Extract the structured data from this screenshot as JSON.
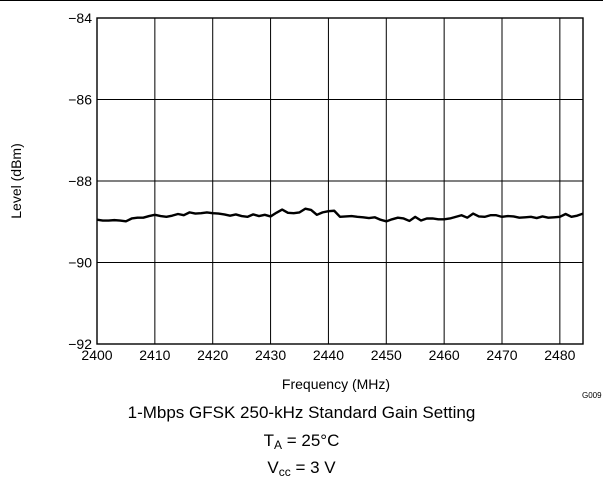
{
  "chart_data": {
    "type": "line",
    "xlabel": "Frequency (MHz)",
    "ylabel": "Level (dBm)",
    "xlim": [
      2400,
      2484
    ],
    "ylim": [
      -92,
      -84
    ],
    "x_ticks": [
      2400,
      2410,
      2420,
      2430,
      2440,
      2450,
      2460,
      2470,
      2480
    ],
    "y_ticks": [
      -84,
      -86,
      -88,
      -90,
      -92
    ],
    "x_tick_labels": [
      "2400",
      "2410",
      "2420",
      "2430",
      "2440",
      "2450",
      "2460",
      "2470",
      "2480"
    ],
    "y_tick_labels": [
      "−84",
      "−86",
      "−88",
      "−90",
      "−92"
    ],
    "grid": true,
    "line_color": "#000000",
    "series": [
      {
        "x": [
          2400,
          2401,
          2402,
          2403,
          2404,
          2405,
          2406,
          2407,
          2408,
          2409,
          2410,
          2411,
          2412,
          2413,
          2414,
          2415,
          2416,
          2417,
          2418,
          2419,
          2420,
          2421,
          2422,
          2423,
          2424,
          2425,
          2426,
          2427,
          2428,
          2429,
          2430,
          2431,
          2432,
          2433,
          2434,
          2435,
          2436,
          2437,
          2438,
          2439,
          2440,
          2441,
          2442,
          2443,
          2444,
          2445,
          2446,
          2447,
          2448,
          2449,
          2450,
          2451,
          2452,
          2453,
          2454,
          2455,
          2456,
          2457,
          2458,
          2459,
          2460,
          2461,
          2462,
          2463,
          2464,
          2465,
          2466,
          2467,
          2468,
          2469,
          2470,
          2471,
          2472,
          2473,
          2474,
          2475,
          2476,
          2477,
          2478,
          2479,
          2480,
          2481,
          2482,
          2483,
          2484
        ],
        "y": [
          -88.95,
          -88.97,
          -88.97,
          -88.96,
          -88.97,
          -88.99,
          -88.92,
          -88.9,
          -88.9,
          -88.86,
          -88.83,
          -88.86,
          -88.88,
          -88.85,
          -88.81,
          -88.84,
          -88.77,
          -88.8,
          -88.79,
          -88.77,
          -88.79,
          -88.8,
          -88.82,
          -88.85,
          -88.82,
          -88.86,
          -88.88,
          -88.82,
          -88.86,
          -88.83,
          -88.87,
          -88.78,
          -88.7,
          -88.78,
          -88.79,
          -88.77,
          -88.68,
          -88.71,
          -88.83,
          -88.77,
          -88.74,
          -88.73,
          -88.88,
          -88.87,
          -88.86,
          -88.88,
          -88.89,
          -88.91,
          -88.89,
          -88.95,
          -88.99,
          -88.94,
          -88.9,
          -88.92,
          -88.98,
          -88.88,
          -88.97,
          -88.92,
          -88.92,
          -88.94,
          -88.94,
          -88.92,
          -88.88,
          -88.84,
          -88.9,
          -88.8,
          -88.87,
          -88.88,
          -88.84,
          -88.84,
          -88.88,
          -88.86,
          -88.87,
          -88.9,
          -88.89,
          -88.88,
          -88.91,
          -88.87,
          -88.9,
          -88.89,
          -88.88,
          -88.81,
          -88.88,
          -88.85,
          -88.8
        ]
      }
    ]
  },
  "figure_id": "G009",
  "caption": {
    "line1": "1-Mbps GFSK 250-kHz Standard Gain Setting",
    "ta_symbol": "T",
    "ta_sub": "A",
    "ta_value": " = 25°C",
    "vcc_symbol": "V",
    "vcc_sub": "cc",
    "vcc_value": " = 3 V"
  }
}
